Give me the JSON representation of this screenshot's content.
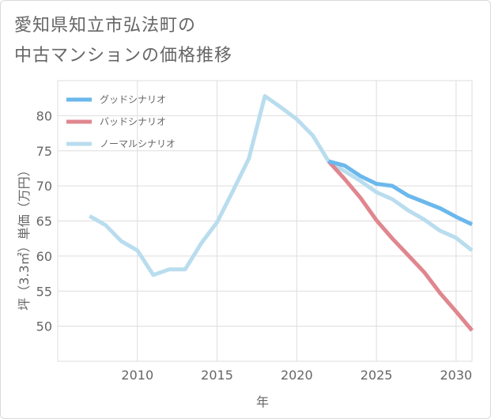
{
  "title_line1": "愛知県知立市弘法町の",
  "title_line2": "中古マンションの価格推移",
  "chart_data": {
    "type": "line",
    "title": "愛知県知立市弘法町の中古マンションの価格推移",
    "xlabel": "年",
    "ylabel": "坪（3.3㎡）単価（万円）",
    "xlim": [
      2005,
      2031
    ],
    "ylim": [
      45,
      85
    ],
    "x_ticks": [
      2010,
      2015,
      2020,
      2025,
      2030
    ],
    "y_ticks": [
      50,
      55,
      60,
      65,
      70,
      75,
      80
    ],
    "grid": true,
    "legend_position": "top-left",
    "series": [
      {
        "name": "グッドシナリオ",
        "color": "#6bb8ec",
        "x": [
          2022,
          2023,
          2024,
          2025,
          2026,
          2027,
          2028,
          2029,
          2030,
          2031
        ],
        "values": [
          73.5,
          72.9,
          71.4,
          70.3,
          70.0,
          68.6,
          67.7,
          66.8,
          65.6,
          64.5
        ]
      },
      {
        "name": "バッドシナリオ",
        "color": "#e0868f",
        "x": [
          2022,
          2023,
          2024,
          2025,
          2026,
          2027,
          2028,
          2029,
          2030,
          2031
        ],
        "values": [
          73.5,
          71.0,
          68.3,
          65.1,
          62.5,
          60.1,
          57.7,
          54.7,
          52.1,
          49.4
        ]
      },
      {
        "name": "ノーマルシナリオ",
        "color": "#b9ddee",
        "x": [
          2007,
          2008,
          2009,
          2010,
          2011,
          2012,
          2013,
          2014,
          2015,
          2016,
          2017,
          2018,
          2019,
          2020,
          2021,
          2022,
          2023,
          2024,
          2025,
          2026,
          2027,
          2028,
          2029,
          2030,
          2031
        ],
        "values": [
          65.7,
          64.4,
          62.1,
          60.8,
          57.3,
          58.1,
          58.1,
          61.8,
          64.8,
          69.3,
          73.9,
          82.8,
          81.2,
          79.5,
          77.2,
          73.5,
          72.1,
          70.7,
          69.1,
          68.1,
          66.5,
          65.2,
          63.6,
          62.6,
          60.8
        ]
      }
    ]
  }
}
